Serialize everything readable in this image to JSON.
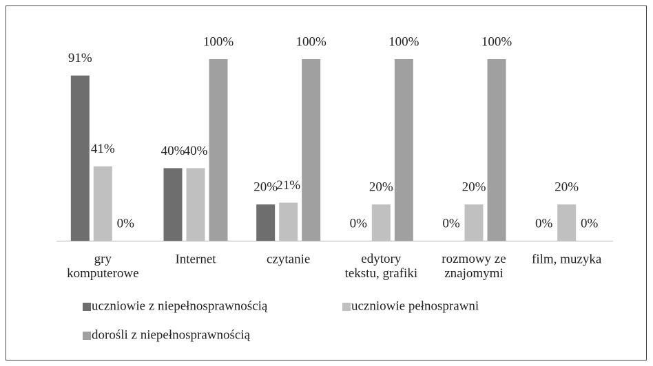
{
  "chart_data": {
    "type": "bar",
    "categories": [
      "gry\nkomputerowe",
      "Internet",
      "czytanie",
      "edytory\ntekstu, grafiki",
      "rozmowy ze\nznajomymi",
      "film, muzyka"
    ],
    "series": [
      {
        "name": "uczniowie z niepełnosprawnością",
        "color": "#6e6e6e",
        "values": [
          91,
          40,
          20,
          0,
          0,
          0
        ],
        "value_labels": [
          "91%",
          "40%",
          "20%",
          "0%",
          "0%",
          "0%"
        ]
      },
      {
        "name": "uczniowie pełnosprawni",
        "color": "#c0c0c0",
        "values": [
          41,
          40,
          21,
          20,
          20,
          20
        ],
        "value_labels": [
          "41%",
          "40%",
          "21%",
          "20%",
          "20%",
          "20%"
        ]
      },
      {
        "name": "dorośli z niepełnosprawnością",
        "color": "#a0a0a0",
        "values": [
          0,
          100,
          100,
          100,
          100,
          0
        ],
        "value_labels": [
          "0%",
          "100%",
          "100%",
          "100%",
          "100%",
          "0%"
        ]
      }
    ],
    "grid": false
  }
}
